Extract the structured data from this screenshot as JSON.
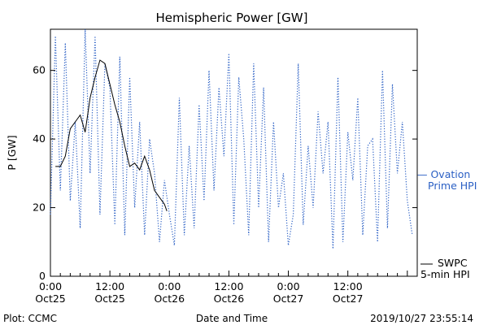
{
  "chart_data": {
    "type": "line",
    "title": "Hemispheric Power [GW]",
    "xlabel": "Date and Time",
    "ylabel": "P [GW]",
    "ylim": [
      0,
      72
    ],
    "y_ticks": [
      0,
      20,
      40,
      60
    ],
    "xlim": [
      "2019-10-25 00:00",
      "2019-10-28 02:00"
    ],
    "x_ticks": [
      {
        "time": "2019-10-25 00:00",
        "line1": "0:00",
        "line2": "Oct25"
      },
      {
        "time": "2019-10-25 12:00",
        "line1": "12:00",
        "line2": "Oct25"
      },
      {
        "time": "2019-10-26 00:00",
        "line1": "0:00",
        "line2": "Oct26"
      },
      {
        "time": "2019-10-26 12:00",
        "line1": "12:00",
        "line2": "Oct26"
      },
      {
        "time": "2019-10-27 00:00",
        "line1": "0:00",
        "line2": "Oct27"
      },
      {
        "time": "2019-10-27 12:00",
        "line1": "12:00",
        "line2": "Oct27"
      }
    ],
    "grid": false,
    "legend_position": "right",
    "series": [
      {
        "name_lines": [
          "— Ovation",
          "Prime HPI"
        ],
        "color": "#2a5fc4",
        "style": "dotted",
        "x": [
          "2019-10-25 00:00",
          "2019-10-25 01:00",
          "2019-10-25 02:00",
          "2019-10-25 03:00",
          "2019-10-25 04:00",
          "2019-10-25 05:00",
          "2019-10-25 06:00",
          "2019-10-25 07:00",
          "2019-10-25 08:00",
          "2019-10-25 09:00",
          "2019-10-25 10:00",
          "2019-10-25 11:00",
          "2019-10-25 12:00",
          "2019-10-25 13:00",
          "2019-10-25 14:00",
          "2019-10-25 15:00",
          "2019-10-25 16:00",
          "2019-10-25 17:00",
          "2019-10-25 18:00",
          "2019-10-25 19:00",
          "2019-10-25 20:00",
          "2019-10-25 21:00",
          "2019-10-25 22:00",
          "2019-10-25 23:00",
          "2019-10-26 00:00",
          "2019-10-26 01:00",
          "2019-10-26 02:00",
          "2019-10-26 03:00",
          "2019-10-26 04:00",
          "2019-10-26 05:00",
          "2019-10-26 06:00",
          "2019-10-26 07:00",
          "2019-10-26 08:00",
          "2019-10-26 09:00",
          "2019-10-26 10:00",
          "2019-10-26 11:00",
          "2019-10-26 12:00",
          "2019-10-26 13:00",
          "2019-10-26 14:00",
          "2019-10-26 15:00",
          "2019-10-26 16:00",
          "2019-10-26 17:00",
          "2019-10-26 18:00",
          "2019-10-26 19:00",
          "2019-10-26 20:00",
          "2019-10-26 21:00",
          "2019-10-26 22:00",
          "2019-10-26 23:00",
          "2019-10-27 00:00",
          "2019-10-27 01:00",
          "2019-10-27 02:00",
          "2019-10-27 03:00",
          "2019-10-27 04:00",
          "2019-10-27 05:00",
          "2019-10-27 06:00",
          "2019-10-27 07:00",
          "2019-10-27 08:00",
          "2019-10-27 09:00",
          "2019-10-27 10:00",
          "2019-10-27 11:00",
          "2019-10-27 12:00",
          "2019-10-27 13:00",
          "2019-10-27 14:00",
          "2019-10-27 15:00",
          "2019-10-27 16:00",
          "2019-10-27 17:00",
          "2019-10-27 18:00",
          "2019-10-27 19:00",
          "2019-10-27 20:00",
          "2019-10-27 21:00",
          "2019-10-27 22:00",
          "2019-10-27 23:00",
          "2019-10-28 00:00",
          "2019-10-28 01:00"
        ],
        "y": [
          18,
          70,
          25,
          68,
          22,
          45,
          14,
          72,
          30,
          70,
          18,
          62,
          55,
          15,
          64,
          12,
          58,
          20,
          45,
          12,
          40,
          30,
          10,
          28,
          18,
          9,
          52,
          12,
          38,
          14,
          50,
          22,
          60,
          25,
          55,
          35,
          65,
          15,
          58,
          40,
          12,
          62,
          20,
          55,
          10,
          45,
          20,
          30,
          9,
          18,
          62,
          15,
          38,
          20,
          48,
          30,
          45,
          8,
          58,
          10,
          42,
          28,
          52,
          12,
          38,
          40,
          10,
          60,
          14,
          56,
          30,
          45,
          22,
          12
        ]
      },
      {
        "name_lines": [
          "SWPC",
          "5-min HPI"
        ],
        "color": "#000000",
        "style": "solid",
        "x": [
          "2019-10-25 01:00",
          "2019-10-25 02:00",
          "2019-10-25 03:00",
          "2019-10-25 04:00",
          "2019-10-25 05:00",
          "2019-10-25 06:00",
          "2019-10-25 07:00",
          "2019-10-25 08:00",
          "2019-10-25 09:00",
          "2019-10-25 10:00",
          "2019-10-25 11:00",
          "2019-10-25 12:00",
          "2019-10-25 13:00",
          "2019-10-25 14:00",
          "2019-10-25 15:00",
          "2019-10-25 16:00",
          "2019-10-25 17:00",
          "2019-10-25 18:00",
          "2019-10-25 19:00",
          "2019-10-25 20:00",
          "2019-10-25 21:00",
          "2019-10-25 22:00",
          "2019-10-25 23:00",
          "2019-10-25 23:30"
        ],
        "y": [
          32,
          32,
          35,
          43,
          45,
          47,
          42,
          52,
          58,
          63,
          62,
          56,
          50,
          45,
          38,
          32,
          33,
          31,
          35,
          31,
          25,
          23,
          21,
          19
        ]
      }
    ]
  },
  "footer": {
    "plot_credit": "Plot: CCMC",
    "timestamp": "2019/10/27 23:55:14"
  }
}
